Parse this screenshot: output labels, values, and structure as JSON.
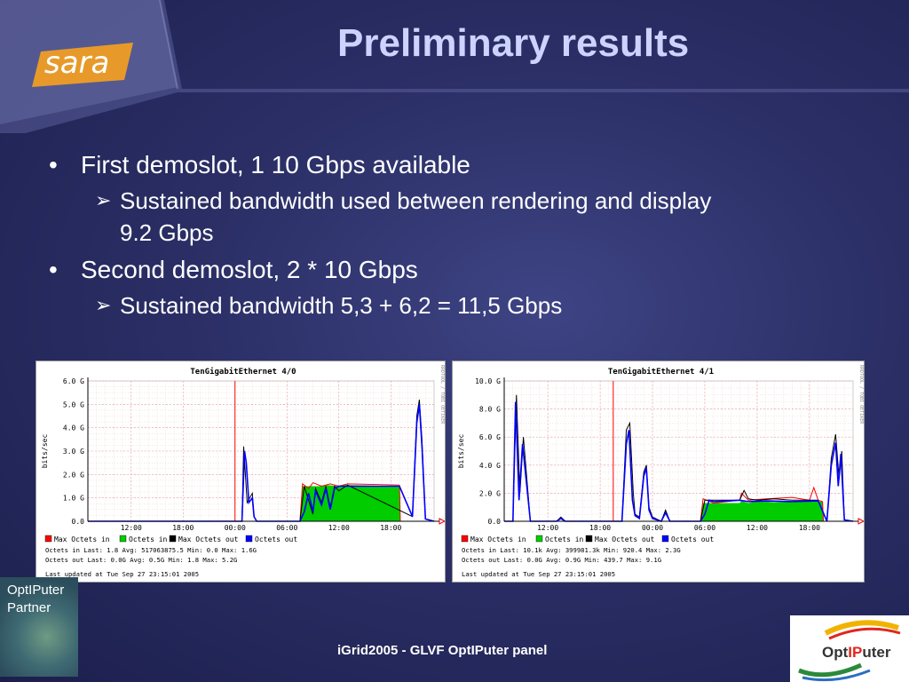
{
  "slide": {
    "title": "Preliminary results",
    "brand_logo_text": "sara",
    "bullets": [
      {
        "text": "First demoslot, 1 10 Gbps available",
        "sub": [
          "Sustained bandwidth used between rendering and display",
          "9.2 Gbps"
        ]
      },
      {
        "text": "Second demoslot, 2 * 10 Gbps",
        "sub": [
          "Sustained bandwidth 5,3 + 6,2 = 11,5 Gbps"
        ]
      }
    ],
    "footer": "iGrid2005 - GLVF OptIPuter panel",
    "partner_badge": [
      "OptIPuter",
      "Partner"
    ],
    "optiputer_logo": {
      "prefix": "Opt",
      "mid": "IP",
      "suffix": "uter"
    },
    "colors": {
      "bg": "#2b2f66",
      "title": "#ccd3ff",
      "max_in": "#ff0000",
      "in": "#00cc00",
      "max_out": "#000000",
      "out": "#0000ff"
    }
  },
  "chart_data": [
    {
      "type": "area",
      "title": "TenGigabitEthernet 4/0",
      "ylabel": "bits/sec",
      "side_text": "RRDTOOL / TOBI OETIKER",
      "yticks": [
        "6.0 G",
        "5.0 G",
        "4.0 G",
        "3.0 G",
        "2.0 G",
        "1.0 G",
        "0.0"
      ],
      "ylim": [
        0,
        6
      ],
      "xticks": [
        "12:00",
        "18:00",
        "00:00",
        "06:00",
        "12:00",
        "18:00"
      ],
      "x_hours": [
        12,
        18,
        24,
        30,
        36,
        42
      ],
      "xlim": [
        7,
        47
      ],
      "marker_x": 24,
      "series": [
        {
          "name": "Octets in",
          "type": "area",
          "color": "#00cc00",
          "x": [
            7,
            31.5,
            31.8,
            34,
            34.5,
            36,
            36.4,
            43,
            43.1,
            47
          ],
          "y": [
            0,
            0,
            1.5,
            1.5,
            1.55,
            1.5,
            1.55,
            1.5,
            0,
            0
          ]
        },
        {
          "name": "Max Octets in",
          "type": "line",
          "color": "#ff0000",
          "x": [
            7,
            31.5,
            31.8,
            32.5,
            33,
            34,
            35,
            36,
            37,
            43,
            43.1,
            47
          ],
          "y": [
            0,
            0,
            1.6,
            1.4,
            1.65,
            1.5,
            1.6,
            1.5,
            1.6,
            1.55,
            0,
            0
          ]
        },
        {
          "name": "Max Octets out",
          "type": "line",
          "color": "#000000",
          "x": [
            7,
            24.8,
            25,
            25.4,
            26,
            26.2,
            26.5,
            31.5,
            32,
            33,
            33.3,
            34,
            34.5,
            35,
            35.5,
            36,
            37,
            44.5,
            45,
            45.3,
            45.6,
            46,
            47
          ],
          "y": [
            0,
            0,
            3.2,
            0.8,
            1.2,
            0.2,
            0,
            0,
            1.5,
            0.3,
            1.4,
            0.8,
            1.5,
            0.6,
            1.5,
            1.3,
            1.55,
            0.2,
            4.5,
            5.2,
            3.5,
            0.1,
            0
          ]
        },
        {
          "name": "Octets out",
          "type": "line",
          "color": "#0000ff",
          "x": [
            7,
            24.8,
            25.1,
            25.3,
            25.6,
            26,
            26.2,
            26.5,
            31.5,
            32,
            32.5,
            33,
            33.3,
            34,
            34.5,
            35,
            35.5,
            36,
            37,
            43,
            44.5,
            45,
            45.3,
            45.6,
            46,
            47
          ],
          "y": [
            0,
            0,
            3.0,
            2.5,
            0.8,
            1.0,
            0.2,
            0,
            0,
            0.4,
            1.2,
            0.4,
            1.3,
            0.7,
            1.4,
            0.5,
            1.4,
            1.5,
            1.5,
            1.5,
            0.2,
            4.2,
            5.0,
            3.2,
            0.1,
            0
          ]
        }
      ],
      "legend": [
        "Max Octets in",
        "Octets in",
        "Max Octets out",
        "Octets out"
      ],
      "stats": [
        "Octets in   Last:      1.8   Avg:  517063875.5   Min:      0.0   Max:       1.6G",
        "Octets out  Last:      0.0G  Avg:         0.5G  Min:      1.8   Max:       5.2G"
      ],
      "updated": "Last updated at Tue Sep 27 23:15:01 2005"
    },
    {
      "type": "area",
      "title": "TenGigabitEthernet 4/1",
      "ylabel": "bits/sec",
      "side_text": "RRDTOOL / TOBI OETIKER",
      "yticks": [
        "10.0 G",
        "8.0 G",
        "6.0 G",
        "4.0 G",
        "2.0 G",
        "0.0"
      ],
      "ylim": [
        0,
        10
      ],
      "xticks": [
        "12:00",
        "18:00",
        "00:00",
        "06:00",
        "12:00",
        "18:00"
      ],
      "x_hours": [
        12,
        18,
        24,
        30,
        36,
        42
      ],
      "xlim": [
        7,
        47
      ],
      "marker_x": 19.5,
      "series": [
        {
          "name": "Octets in",
          "type": "area",
          "color": "#00cc00",
          "x": [
            7,
            29.5,
            29.8,
            34,
            34.2,
            35,
            36,
            38,
            40,
            43.5,
            43.6,
            47
          ],
          "y": [
            0,
            0,
            1.3,
            1.3,
            1.45,
            1.3,
            1.45,
            1.35,
            1.4,
            1.4,
            0,
            0
          ]
        },
        {
          "name": "Max Octets in",
          "type": "line",
          "color": "#ff0000",
          "x": [
            7,
            29.5,
            29.8,
            31,
            34,
            34.2,
            35,
            37,
            40,
            42,
            42.5,
            43,
            43.5,
            43.6,
            47
          ],
          "y": [
            0,
            0,
            1.6,
            1.3,
            1.5,
            2.0,
            1.5,
            1.6,
            1.7,
            1.5,
            2.4,
            1.5,
            1.4,
            0,
            0
          ]
        },
        {
          "name": "Max Octets out",
          "type": "line",
          "color": "#000000",
          "x": [
            7,
            8,
            8.4,
            8.8,
            9.2,
            10,
            13,
            13.5,
            14,
            20.5,
            21,
            21.4,
            21.8,
            22,
            22.5,
            23,
            23.3,
            23.6,
            24,
            25,
            25.5,
            26,
            26.5,
            29.5,
            30,
            34,
            34.5,
            35,
            36,
            38,
            40,
            43,
            44,
            44.5,
            45,
            45.4,
            45.7,
            46,
            47
          ],
          "y": [
            0,
            0,
            9.0,
            2.0,
            6.0,
            0,
            0,
            0.3,
            0,
            0,
            6.5,
            7.0,
            2.0,
            0.5,
            0.3,
            3.5,
            4.0,
            1.0,
            0.3,
            0,
            0.8,
            0,
            0,
            0,
            1.5,
            1.5,
            2.2,
            1.6,
            1.5,
            1.6,
            1.5,
            1.5,
            0,
            4.5,
            6.2,
            3.0,
            5.0,
            0.1,
            0
          ]
        },
        {
          "name": "Octets out",
          "type": "line",
          "color": "#0000ff",
          "x": [
            7,
            8,
            8.3,
            8.7,
            9.1,
            10,
            13,
            13.5,
            14,
            20.5,
            21,
            21.3,
            21.7,
            22,
            22.5,
            23,
            23.3,
            23.6,
            24,
            25,
            25.5,
            26,
            26.5,
            29.5,
            30,
            30.5,
            31,
            34,
            35,
            37,
            40,
            43,
            44,
            44.5,
            45,
            45.3,
            45.6,
            46,
            47
          ],
          "y": [
            0,
            0,
            8.5,
            1.5,
            5.5,
            0,
            0,
            0.2,
            0,
            0,
            5.5,
            6.5,
            1.5,
            0.4,
            0.2,
            3.2,
            3.8,
            0.8,
            0.2,
            0,
            0.6,
            0,
            0,
            0,
            0.5,
            1.5,
            1.4,
            1.5,
            1.4,
            1.45,
            1.4,
            1.45,
            0,
            4.0,
            5.6,
            2.5,
            4.8,
            0.1,
            0
          ]
        }
      ],
      "legend": [
        "Max Octets in",
        "Octets in",
        "Max Octets out",
        "Octets out"
      ],
      "stats": [
        "Octets in   Last:     10.1k  Avg:  399981.3k  Min:    920.4   Max:       2.3G",
        "Octets out  Last:      0.0G  Avg:       0.9G  Min:    439.7   Max:       9.1G"
      ],
      "updated": "Last updated at Tue Sep 27 23:15:01 2005"
    }
  ]
}
